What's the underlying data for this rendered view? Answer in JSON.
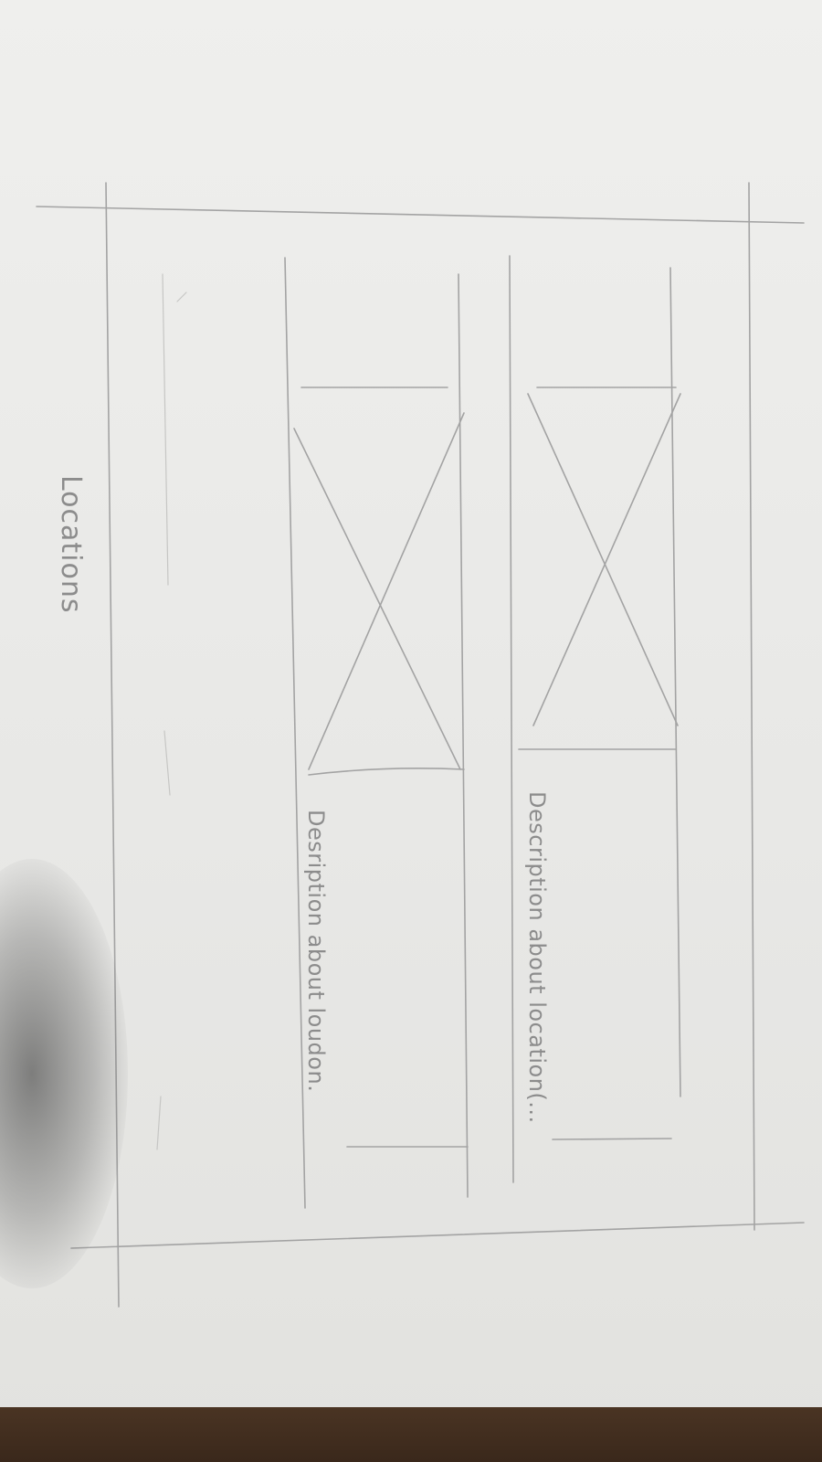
{
  "sketch": {
    "page_title": "Locations",
    "cards": [
      {
        "description": "Description about location(..."
      },
      {
        "description": "Desription about loudon."
      }
    ]
  }
}
